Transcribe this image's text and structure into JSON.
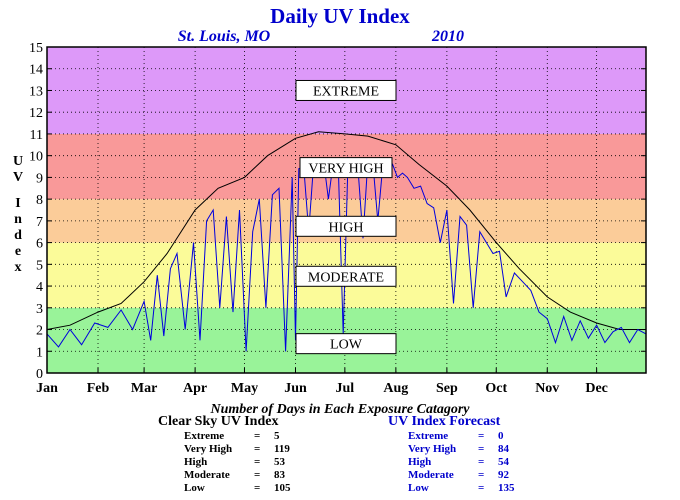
{
  "title": "Daily UV Index",
  "subtitle_location": "St. Louis, MO",
  "subtitle_year": "2010",
  "y_axis_label": "UV Index",
  "x_axis_caption": "Number of Days in Each Exposure Catagory",
  "chart_data": {
    "type": "line",
    "title": "Daily UV Index",
    "ylabel": "UV Index",
    "ylim": [
      0,
      15
    ],
    "y_ticks": [
      "0",
      "1",
      "2",
      "3",
      "4",
      "5",
      "6",
      "7",
      "8",
      "9",
      "10",
      "11",
      "12",
      "13",
      "14",
      "15"
    ],
    "categories": [
      "Jan",
      "Feb",
      "Mar",
      "Apr",
      "May",
      "Jun",
      "Jul",
      "Aug",
      "Sep",
      "Oct",
      "Nov",
      "Dec"
    ],
    "bands": [
      {
        "label": "LOW",
        "from": 0,
        "to": 3,
        "color": "#99f399"
      },
      {
        "label": "MODERATE",
        "from": 3,
        "to": 6,
        "color": "#fbfb99"
      },
      {
        "label": "HIGH",
        "from": 6,
        "to": 8,
        "color": "#fbcc99"
      },
      {
        "label": "VERY HIGH",
        "from": 8,
        "to": 11,
        "color": "#f99999"
      },
      {
        "label": "EXTREME",
        "from": 11,
        "to": 15,
        "color": "#dd99f9"
      }
    ],
    "series": [
      {
        "name": "Clear Sky UV Index",
        "color": "#000000",
        "x": [
          1,
          15,
          32,
          46,
          60,
          74,
          91,
          105,
          121,
          135,
          152,
          166,
          182,
          196,
          213,
          227,
          244,
          258,
          274,
          288,
          305,
          319,
          335,
          349,
          365
        ],
        "y": [
          2.0,
          2.2,
          2.8,
          3.2,
          4.2,
          5.5,
          7.5,
          8.5,
          9.0,
          10.0,
          10.8,
          11.1,
          11.0,
          10.9,
          10.5,
          9.6,
          8.6,
          7.5,
          6.0,
          4.8,
          3.5,
          2.8,
          2.3,
          2.0,
          2.0
        ]
      },
      {
        "name": "UV Index Forecast",
        "color": "#0000dd",
        "x": [
          1,
          8,
          15,
          22,
          30,
          38,
          46,
          53,
          60,
          64,
          68,
          72,
          76,
          80,
          85,
          90,
          94,
          98,
          102,
          106,
          110,
          114,
          118,
          122,
          126,
          130,
          134,
          138,
          142,
          146,
          150,
          152,
          154,
          157,
          160,
          163,
          166,
          169,
          172,
          175,
          178,
          181,
          184,
          187,
          190,
          193,
          196,
          199,
          202,
          205,
          208,
          211,
          214,
          217,
          220,
          224,
          228,
          232,
          236,
          240,
          244,
          248,
          252,
          256,
          260,
          264,
          268,
          272,
          276,
          280,
          285,
          290,
          295,
          300,
          305,
          310,
          315,
          320,
          325,
          330,
          335,
          340,
          345,
          350,
          355,
          360,
          365
        ],
        "y": [
          1.8,
          1.2,
          2.0,
          1.3,
          2.3,
          2.1,
          2.9,
          2.0,
          3.3,
          1.5,
          4.5,
          1.7,
          4.8,
          5.5,
          2.0,
          6.0,
          1.5,
          7.0,
          7.5,
          3.0,
          7.2,
          2.8,
          7.5,
          1.0,
          6.5,
          8.0,
          3.0,
          8.2,
          8.5,
          1.0,
          9.0,
          1.5,
          9.4,
          9.5,
          6.5,
          9.6,
          9.3,
          9.8,
          8.0,
          9.7,
          9.5,
          1.8,
          9.9,
          9.6,
          9.4,
          6.2,
          9.8,
          9.7,
          7.0,
          9.5,
          9.4,
          9.6,
          9.0,
          9.2,
          9.0,
          8.5,
          8.6,
          7.8,
          7.6,
          6.0,
          7.5,
          3.2,
          7.2,
          6.8,
          3.0,
          6.5,
          6.0,
          5.5,
          5.6,
          3.5,
          4.6,
          4.2,
          3.8,
          2.8,
          2.5,
          1.4,
          2.6,
          1.5,
          2.4,
          1.6,
          2.2,
          1.4,
          1.9,
          2.1,
          1.4,
          2.0,
          1.8
        ]
      }
    ],
    "legend": "none"
  },
  "band_labels": {
    "extreme": "EXTREME",
    "very_high": "VERY HIGH",
    "high": "HIGH",
    "moderate": "MODERATE",
    "low": "LOW"
  },
  "clear_sky_counts": {
    "heading": "Clear Sky UV Index",
    "rows": [
      {
        "label": "Extreme",
        "eq": "=",
        "value": "5"
      },
      {
        "label": "Very High",
        "eq": "=",
        "value": "119"
      },
      {
        "label": "High",
        "eq": "=",
        "value": "53"
      },
      {
        "label": "Moderate",
        "eq": "=",
        "value": "83"
      },
      {
        "label": "Low",
        "eq": "=",
        "value": "105"
      }
    ]
  },
  "forecast_counts": {
    "heading": "UV Index Forecast",
    "rows": [
      {
        "label": "Extreme",
        "eq": "=",
        "value": "0"
      },
      {
        "label": "Very High",
        "eq": "=",
        "value": "84"
      },
      {
        "label": "High",
        "eq": "=",
        "value": "54"
      },
      {
        "label": "Moderate",
        "eq": "=",
        "value": "92"
      },
      {
        "label": "Low",
        "eq": "=",
        "value": "135"
      }
    ]
  },
  "colors": {
    "title": "#0000cc",
    "forecast": "#0000dd",
    "clear_sky": "#000000"
  }
}
